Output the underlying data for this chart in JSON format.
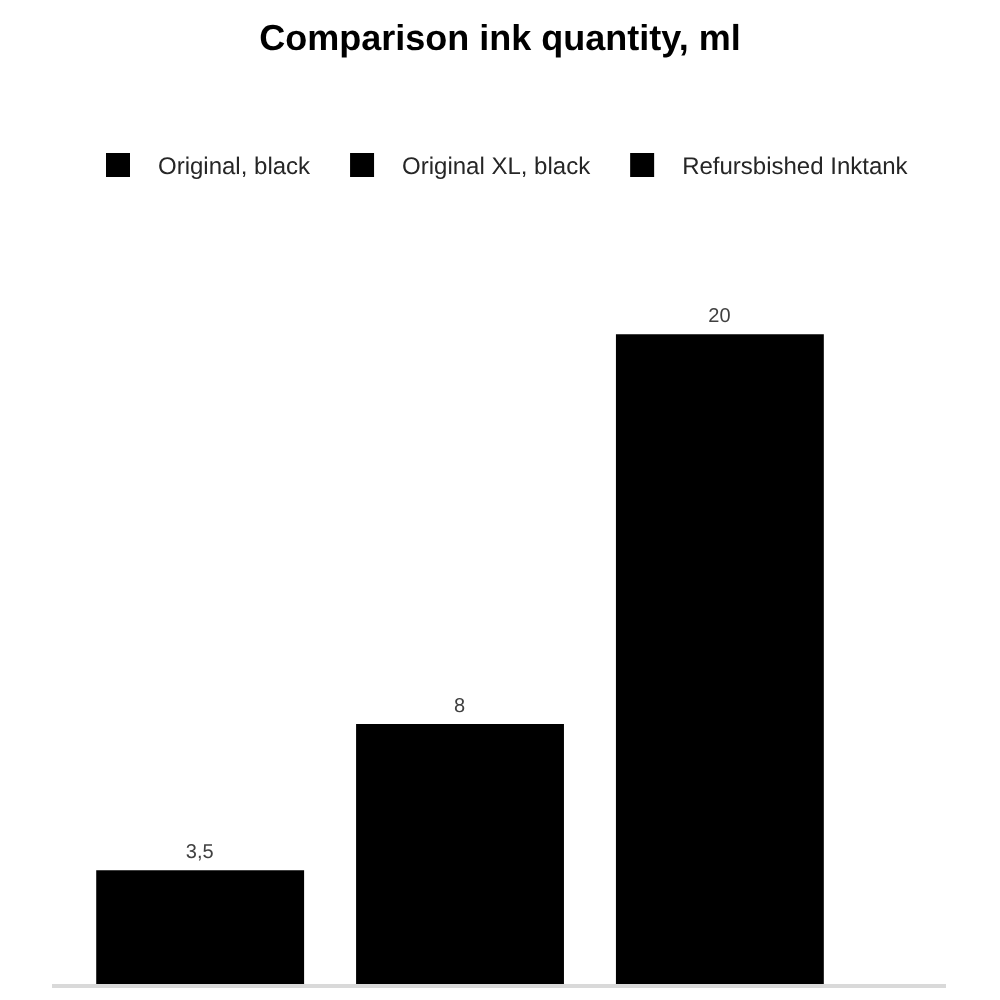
{
  "chart_data": {
    "type": "bar",
    "title": "Comparison ink quantity, ml",
    "categories": [
      null
    ],
    "series": [
      {
        "name": "Original, black",
        "color": "#000000",
        "values": [
          3.5
        ],
        "value_labels": [
          "3,5"
        ]
      },
      {
        "name": "Original XL, black",
        "color": "#000000",
        "values": [
          8
        ],
        "value_labels": [
          "8"
        ]
      },
      {
        "name": "Refursbished Inktank",
        "color": "#000000",
        "values": [
          20
        ],
        "value_labels": [
          "20"
        ]
      }
    ],
    "legend": "top",
    "tick_labels": false
  }
}
